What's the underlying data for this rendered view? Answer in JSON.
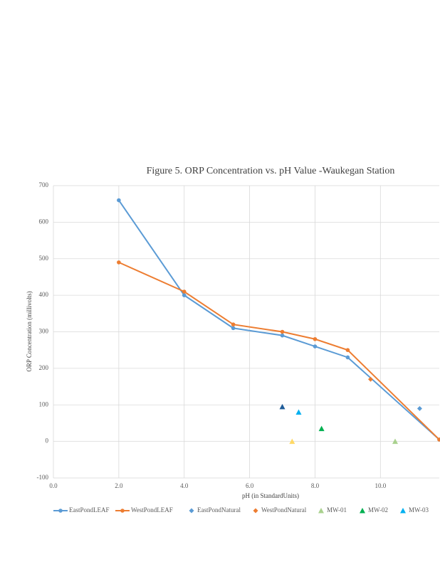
{
  "chart_data": {
    "type": "scatter",
    "title": "Figure 5. ORP Concentration  vs. pH Value -Waukegan  Station",
    "x_label": "pH (in StandardUnits)",
    "y_label": "ORP Concentration  (millivolts)",
    "xlim": [
      0,
      11.8
    ],
    "ylim": [
      -100,
      700
    ],
    "xticks": [
      {
        "value": 0,
        "label": "0.0"
      },
      {
        "value": 2,
        "label": "2.0"
      },
      {
        "value": 4,
        "label": "4.0"
      },
      {
        "value": 6,
        "label": "6.0"
      },
      {
        "value": 8,
        "label": "8.0"
      },
      {
        "value": 10,
        "label": "10.0"
      }
    ],
    "yticks": [
      -100,
      0,
      100,
      200,
      300,
      400,
      500,
      600,
      700
    ],
    "grid": true,
    "series": [
      {
        "name": "EastPondLEAF",
        "color": "#5b9bd5",
        "marker": "circle",
        "line": true,
        "x": [
          2,
          4,
          5.5,
          7,
          8,
          9,
          11.8
        ],
        "values": [
          660,
          400,
          310,
          290,
          260,
          230,
          5
        ]
      },
      {
        "name": "WestPondLEAF",
        "color": "#ed7d31",
        "marker": "circle",
        "line": true,
        "x": [
          2,
          4,
          5.5,
          7,
          8,
          9,
          11.8
        ],
        "values": [
          490,
          410,
          320,
          300,
          280,
          250,
          5
        ]
      },
      {
        "name": "EastPondNatural",
        "color": "#5b9bd5",
        "marker": "diamond",
        "line": false,
        "x": [
          11.2
        ],
        "values": [
          90
        ]
      },
      {
        "name": "WestPondNatural",
        "color": "#ed7d31",
        "marker": "diamond",
        "line": false,
        "x": [
          9.7
        ],
        "values": [
          170
        ]
      },
      {
        "name": "MW-01",
        "color": "#a9d18e",
        "marker": "triangle",
        "line": false,
        "x": [
          7.3,
          10.45
        ],
        "values": [
          0,
          0
        ],
        "point_colors": [
          "#ffd966",
          "#a9d18e"
        ]
      },
      {
        "name": "MW-02",
        "color": "#00b050",
        "marker": "triangle",
        "line": false,
        "x": [
          8.2,
          7.0
        ],
        "values": [
          35,
          95
        ],
        "point_colors": [
          "#00b050",
          "#1f5c99"
        ]
      },
      {
        "name": "MW-03",
        "color": "#00b0f0",
        "marker": "triangle",
        "line": false,
        "x": [
          7.5
        ],
        "values": [
          80
        ]
      }
    ]
  }
}
